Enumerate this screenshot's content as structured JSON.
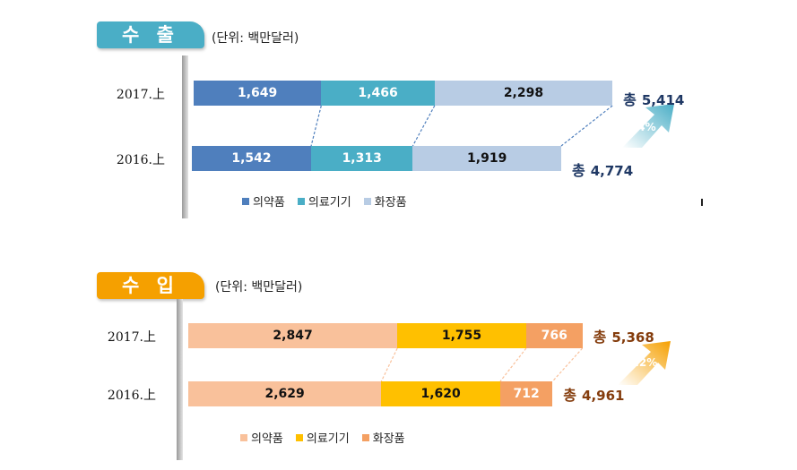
{
  "chart_data": [
    {
      "type": "bar",
      "title": "수 출",
      "unit": "(단위: 백만달러)",
      "categories": [
        "2017.上",
        "2016.上"
      ],
      "series": [
        {
          "name": "의약품",
          "values": [
            1649,
            1542
          ],
          "labels": [
            "1,649",
            "1,542"
          ],
          "color": "#4f7fbd"
        },
        {
          "name": "의료기기",
          "values": [
            1466,
            1313
          ],
          "labels": [
            "1,466",
            "1,313"
          ],
          "color": "#4aaec6"
        },
        {
          "name": "화장품",
          "values": [
            2298,
            1919
          ],
          "labels": [
            "2,298",
            "1,919"
          ],
          "color": "#b8cce4"
        }
      ],
      "totals": {
        "label": "총",
        "values": [
          "5,414",
          "4,774"
        ]
      },
      "growth": "13.4%",
      "tab_color": "#4aaec6",
      "total_color": "#1f3864",
      "bar_text_colors": [
        "#ffffff",
        "#ffffff",
        "#111111"
      ]
    },
    {
      "type": "bar",
      "title": "수 입",
      "unit": "(단위: 백만달러)",
      "categories": [
        "2017.上",
        "2016.上"
      ],
      "series": [
        {
          "name": "의약품",
          "values": [
            2847,
            2629
          ],
          "labels": [
            "2,847",
            "2,629"
          ],
          "color": "#f9c19b"
        },
        {
          "name": "의료기기",
          "values": [
            1755,
            1620
          ],
          "labels": [
            "1,755",
            "1,620"
          ],
          "color": "#ffc000"
        },
        {
          "name": "화장품",
          "values": [
            766,
            712
          ],
          "labels": [
            "766",
            "712"
          ],
          "color": "#f4a063"
        }
      ],
      "totals": {
        "label": "총",
        "values": [
          "5,368",
          "4,961"
        ]
      },
      "growth": "8.2%",
      "tab_color": "#f5a000",
      "total_color": "#843c0c",
      "bar_text_colors": [
        "#111111",
        "#111111",
        "#ffffff"
      ]
    }
  ]
}
